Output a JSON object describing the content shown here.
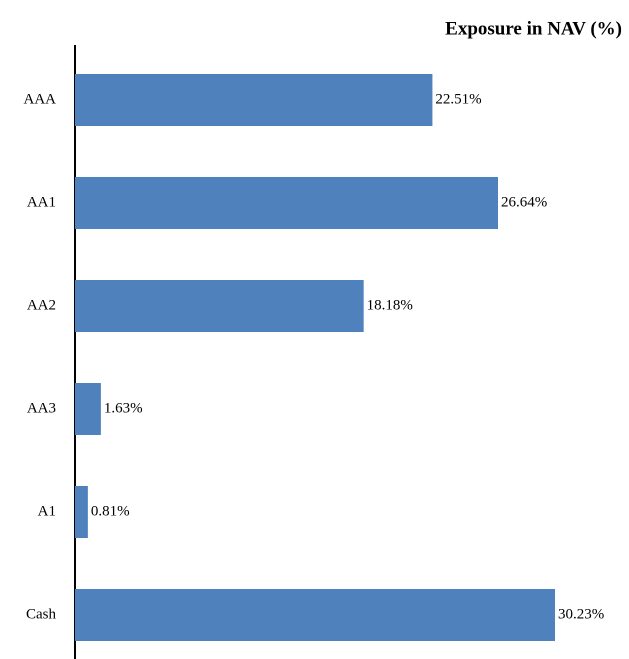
{
  "chart_data": {
    "type": "bar",
    "orientation": "horizontal",
    "title": "Exposure in NAV (%)",
    "categories": [
      "AAA",
      "AA1",
      "AA2",
      "AA3",
      "A1",
      "Cash"
    ],
    "values": [
      22.51,
      26.64,
      18.18,
      1.63,
      0.81,
      30.23
    ],
    "value_labels": [
      "22.51%",
      "26.64%",
      "18.18%",
      "1.63%",
      "0.81%",
      "30.23%"
    ],
    "color": "#4f81bd"
  }
}
